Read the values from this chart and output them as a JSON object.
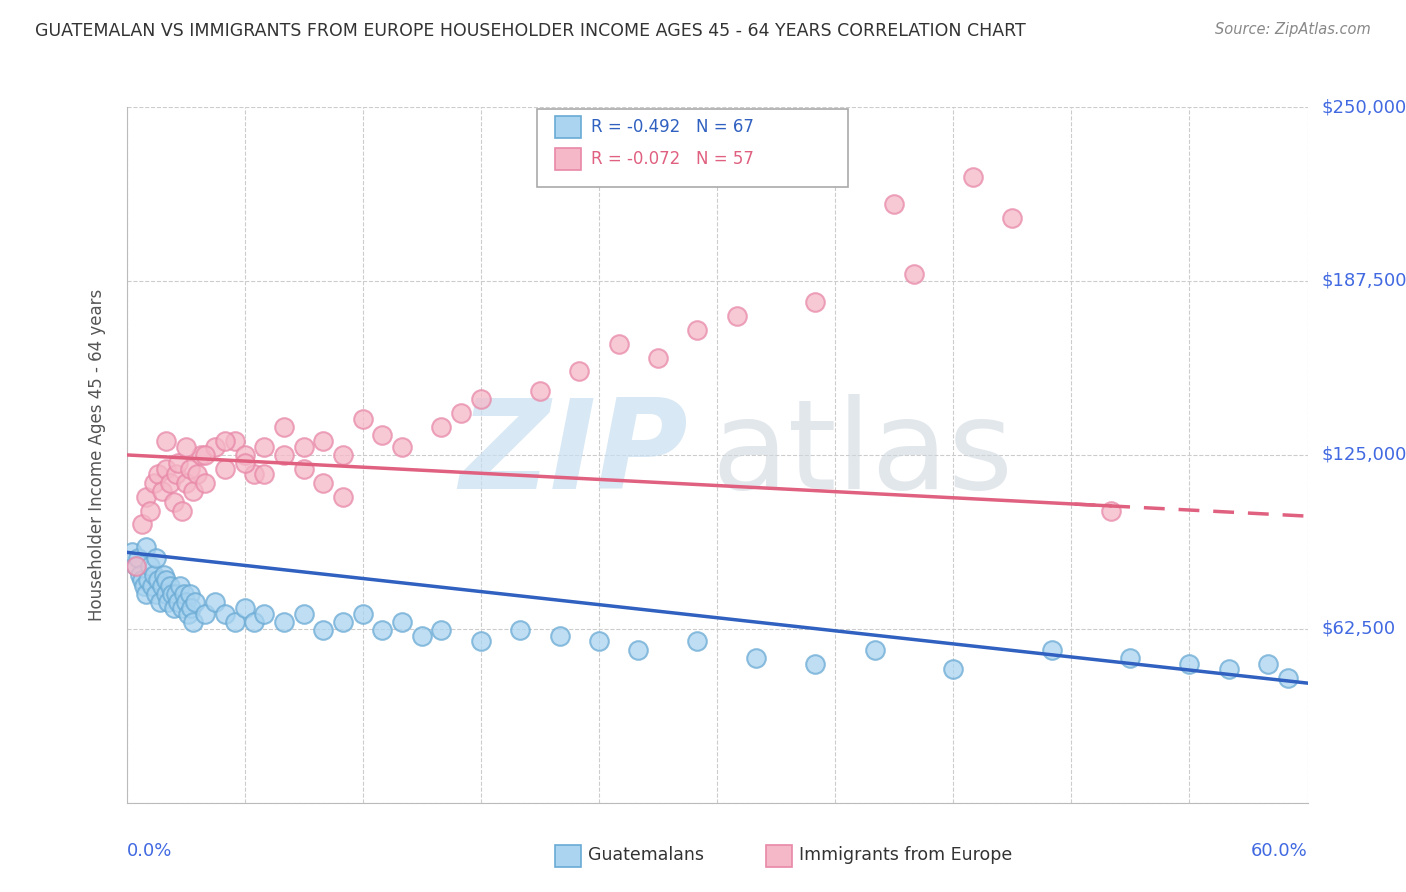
{
  "title": "GUATEMALAN VS IMMIGRANTS FROM EUROPE HOUSEHOLDER INCOME AGES 45 - 64 YEARS CORRELATION CHART",
  "source": "Source: ZipAtlas.com",
  "ylabel": "Householder Income Ages 45 - 64 years",
  "ytick_values": [
    0,
    62500,
    125000,
    187500,
    250000
  ],
  "ytick_labels": [
    "",
    "$62,500",
    "$125,000",
    "$187,500",
    "$250,000"
  ],
  "xlim": [
    0.0,
    0.6
  ],
  "ylim": [
    0,
    250000
  ],
  "blue_label": "Guatemalans",
  "pink_label": "Immigrants from Europe",
  "blue_R": "R = -0.492",
  "blue_N": "N = 67",
  "pink_R": "R = -0.072",
  "pink_N": "N = 57",
  "blue_fill": "#aad4f0",
  "blue_edge": "#6aaad4",
  "pink_fill": "#f5b8c8",
  "pink_edge": "#e888a8",
  "blue_line": "#3060c0",
  "pink_line": "#e06080",
  "background": "#ffffff",
  "blue_x": [
    0.003,
    0.005,
    0.006,
    0.007,
    0.008,
    0.009,
    0.01,
    0.01,
    0.011,
    0.012,
    0.013,
    0.014,
    0.015,
    0.015,
    0.016,
    0.017,
    0.018,
    0.019,
    0.02,
    0.02,
    0.021,
    0.022,
    0.023,
    0.024,
    0.025,
    0.026,
    0.027,
    0.028,
    0.029,
    0.03,
    0.031,
    0.032,
    0.033,
    0.034,
    0.035,
    0.04,
    0.045,
    0.05,
    0.055,
    0.06,
    0.065,
    0.07,
    0.08,
    0.09,
    0.1,
    0.11,
    0.12,
    0.13,
    0.14,
    0.15,
    0.16,
    0.18,
    0.2,
    0.22,
    0.24,
    0.26,
    0.29,
    0.32,
    0.35,
    0.38,
    0.42,
    0.47,
    0.51,
    0.54,
    0.56,
    0.58,
    0.59
  ],
  "blue_y": [
    90000,
    85000,
    88000,
    82000,
    80000,
    78000,
    92000,
    75000,
    80000,
    85000,
    78000,
    82000,
    75000,
    88000,
    80000,
    72000,
    78000,
    82000,
    75000,
    80000,
    72000,
    78000,
    75000,
    70000,
    75000,
    72000,
    78000,
    70000,
    75000,
    72000,
    68000,
    75000,
    70000,
    65000,
    72000,
    68000,
    72000,
    68000,
    65000,
    70000,
    65000,
    68000,
    65000,
    68000,
    62000,
    65000,
    68000,
    62000,
    65000,
    60000,
    62000,
    58000,
    62000,
    60000,
    58000,
    55000,
    58000,
    52000,
    50000,
    55000,
    48000,
    55000,
    52000,
    50000,
    48000,
    50000,
    45000
  ],
  "pink_x": [
    0.005,
    0.008,
    0.01,
    0.012,
    0.014,
    0.016,
    0.018,
    0.02,
    0.022,
    0.024,
    0.025,
    0.026,
    0.028,
    0.03,
    0.032,
    0.034,
    0.036,
    0.038,
    0.04,
    0.045,
    0.05,
    0.055,
    0.06,
    0.065,
    0.07,
    0.08,
    0.09,
    0.1,
    0.11,
    0.12,
    0.13,
    0.14,
    0.16,
    0.17,
    0.18,
    0.21,
    0.23,
    0.27,
    0.31,
    0.35,
    0.39,
    0.43,
    0.45,
    0.29,
    0.25,
    0.02,
    0.03,
    0.04,
    0.05,
    0.06,
    0.07,
    0.08,
    0.09,
    0.1,
    0.11,
    0.4,
    0.5
  ],
  "pink_y": [
    85000,
    100000,
    110000,
    105000,
    115000,
    118000,
    112000,
    120000,
    115000,
    108000,
    118000,
    122000,
    105000,
    115000,
    120000,
    112000,
    118000,
    125000,
    115000,
    128000,
    120000,
    130000,
    125000,
    118000,
    128000,
    135000,
    128000,
    130000,
    125000,
    138000,
    132000,
    128000,
    135000,
    140000,
    145000,
    148000,
    155000,
    160000,
    175000,
    180000,
    215000,
    225000,
    210000,
    170000,
    165000,
    130000,
    128000,
    125000,
    130000,
    122000,
    118000,
    125000,
    120000,
    115000,
    110000,
    190000,
    105000
  ]
}
